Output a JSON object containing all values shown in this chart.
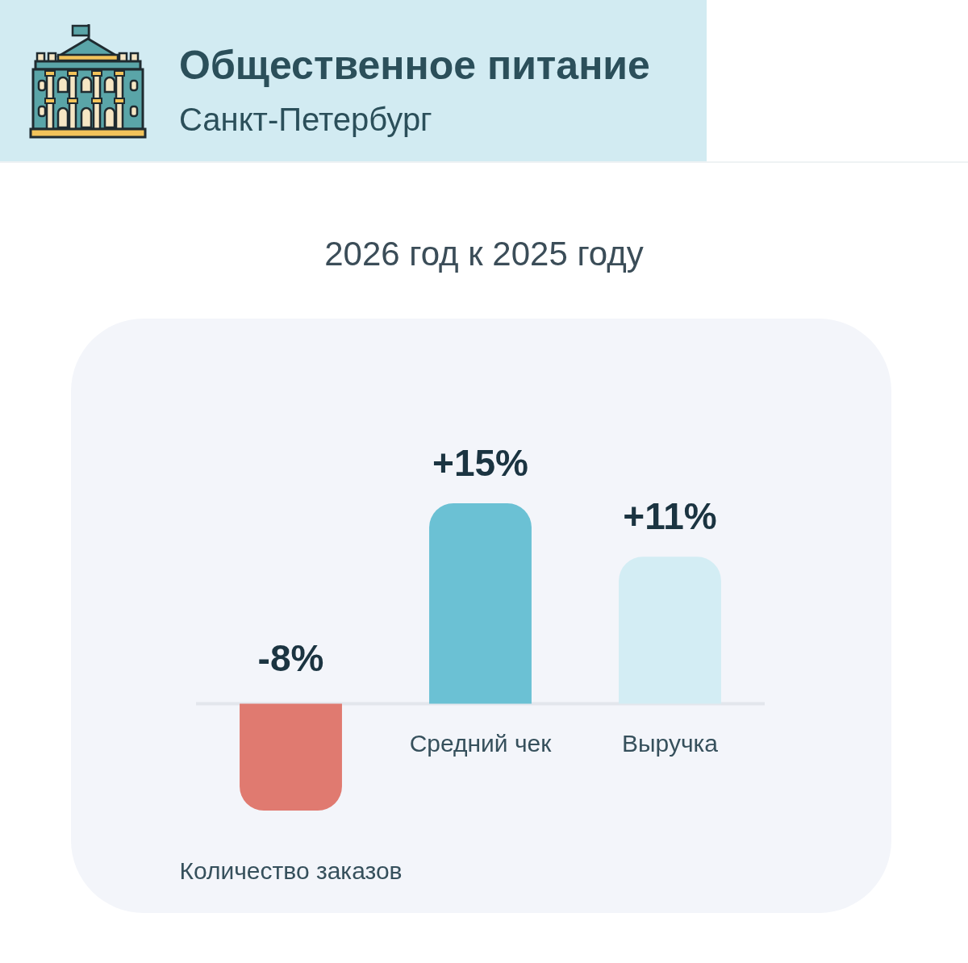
{
  "chart_data": {
    "type": "bar",
    "title": "Общественное питание",
    "subtitle": "Санкт-Петербург",
    "annotations": [
      "2026 год к 2025 году"
    ],
    "categories": [
      "Количество заказов",
      "Средний чек",
      "Выручка"
    ],
    "values": [
      -8,
      15,
      11
    ],
    "colors": [
      "#e07a70",
      "#6bc1d4",
      "#d3edf4"
    ],
    "value_labels": [
      "-8%",
      "+15%",
      "+11%"
    ],
    "tick_labels": "x"
  }
}
